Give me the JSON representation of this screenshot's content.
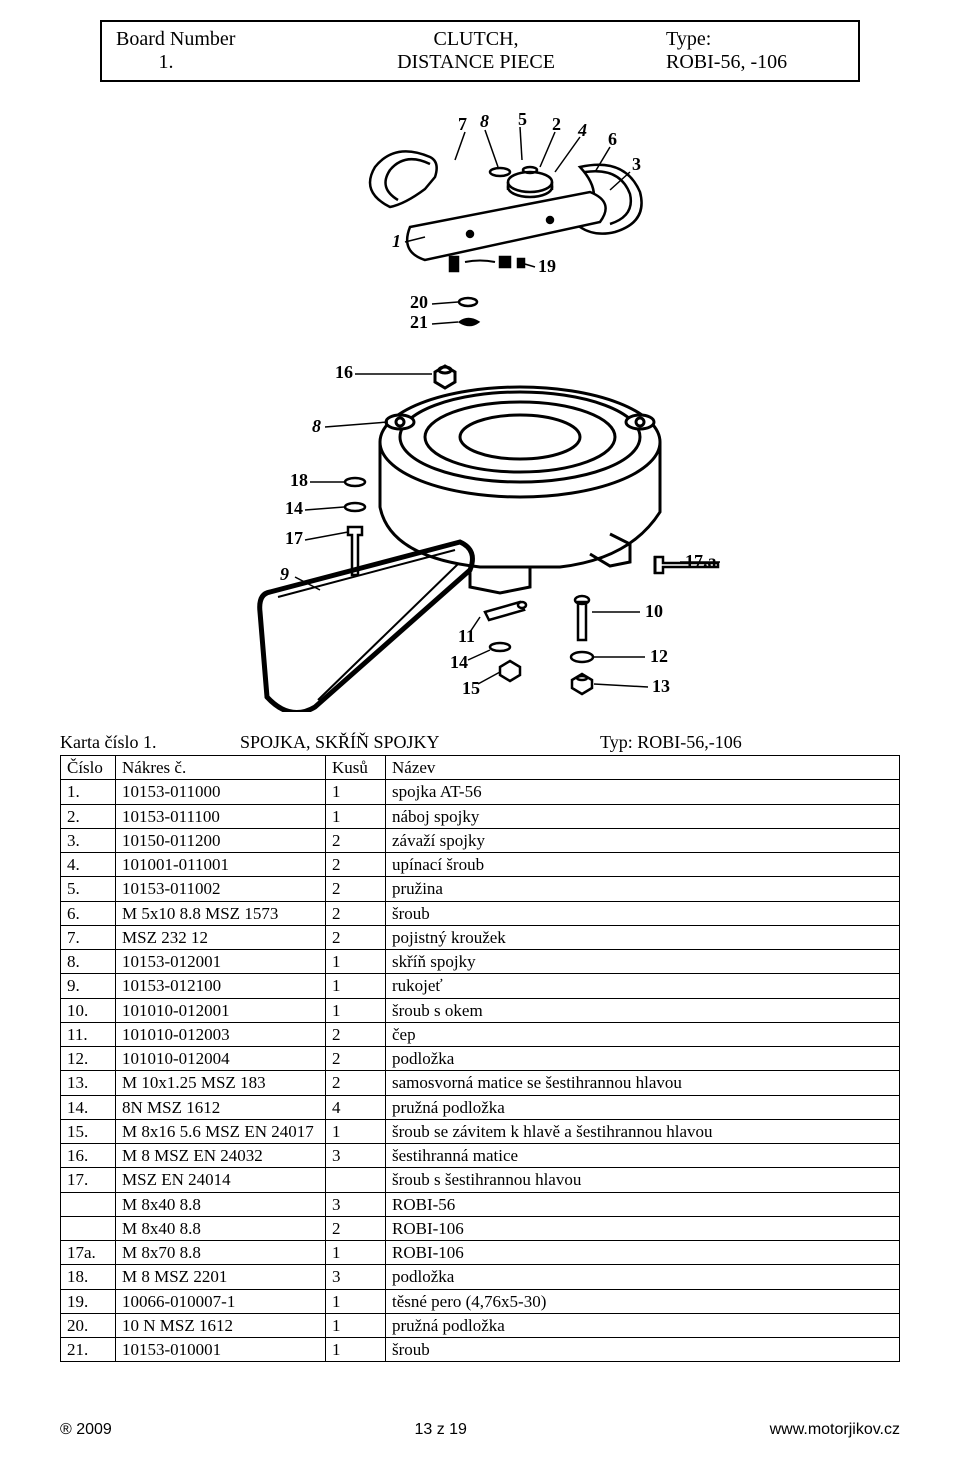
{
  "header": {
    "l1a": "Board Number",
    "l1b": "CLUTCH,",
    "l1c": "Type:",
    "l2a": "1.",
    "l2b": "DISTANCE PIECE",
    "l2c": "ROBI-56,  -106"
  },
  "diagram": {
    "callouts_top": [
      "7",
      "8",
      "5",
      "2",
      "4",
      "6",
      "3",
      "1",
      "19"
    ],
    "callouts_mid": [
      "20",
      "21"
    ],
    "callouts_left": [
      "16",
      "8",
      "18",
      "14",
      "17",
      "9"
    ],
    "callouts_right": [
      "17.a",
      "10",
      "12",
      "13"
    ],
    "callouts_bottom": [
      "11",
      "14",
      "15"
    ]
  },
  "section": {
    "left": "Karta číslo 1.",
    "mid": "SPOJKA, SKŘÍŇ SPOJKY",
    "right": "Typ: ROBI-56,-106"
  },
  "columns": [
    "Číslo",
    "Nákres č.",
    "Kusů",
    "Název"
  ],
  "rows": [
    [
      "1.",
      "10153-011000",
      "1",
      "spojka AT-56"
    ],
    [
      "2.",
      "10153-011100",
      "1",
      "náboj spojky"
    ],
    [
      "3.",
      "10150-011200",
      "2",
      "závaží spojky"
    ],
    [
      "4.",
      "101001-011001",
      "2",
      "upínací šroub"
    ],
    [
      "5.",
      "10153-011002",
      "2",
      "pružina"
    ],
    [
      "6.",
      "M 5x10 8.8 MSZ 1573",
      "2",
      "šroub"
    ],
    [
      "7.",
      "MSZ 232 12",
      "2",
      "pojistný kroužek"
    ],
    [
      "8.",
      "10153-012001",
      "1",
      "skříň spojky"
    ],
    [
      "9.",
      "10153-012100",
      "1",
      "rukojeť"
    ],
    [
      "10.",
      "101010-012001",
      "1",
      "šroub s okem"
    ],
    [
      "11.",
      "101010-012003",
      "2",
      "čep"
    ],
    [
      "12.",
      "101010-012004",
      "2",
      "podložka"
    ],
    [
      "13.",
      "M 10x1.25 MSZ 183",
      "2",
      "samosvorná matice se šestihrannou hlavou"
    ],
    [
      "14.",
      "8N MSZ 1612",
      "4",
      "pružná podložka"
    ],
    [
      "15.",
      "M 8x16 5.6 MSZ EN 24017",
      "1",
      "šroub se závitem k hlavě a šestihrannou hlavou"
    ],
    [
      "16.",
      "M 8 MSZ EN 24032",
      "3",
      "šestihranná matice"
    ],
    [
      "17.",
      "MSZ EN 24014",
      "",
      "šroub s šestihrannou hlavou"
    ],
    [
      "",
      "M 8x40 8.8",
      "3",
      "ROBI-56"
    ],
    [
      "",
      "M 8x40 8.8",
      "2",
      "ROBI-106"
    ],
    [
      "17a.",
      "M 8x70 8.8",
      "1",
      "ROBI-106"
    ],
    [
      "18.",
      "M 8 MSZ 2201",
      "3",
      "podložka"
    ],
    [
      "19.",
      "10066-010007-1",
      "1",
      "těsné pero (4,76x5-30)"
    ],
    [
      "20.",
      "10 N MSZ 1612",
      "1",
      "pružná podložka"
    ],
    [
      "21.",
      "10153-010001",
      "1",
      "šroub"
    ]
  ],
  "footer": {
    "left": "® 2009",
    "mid": "13 z 19",
    "right": "www.motorjikov.cz"
  }
}
